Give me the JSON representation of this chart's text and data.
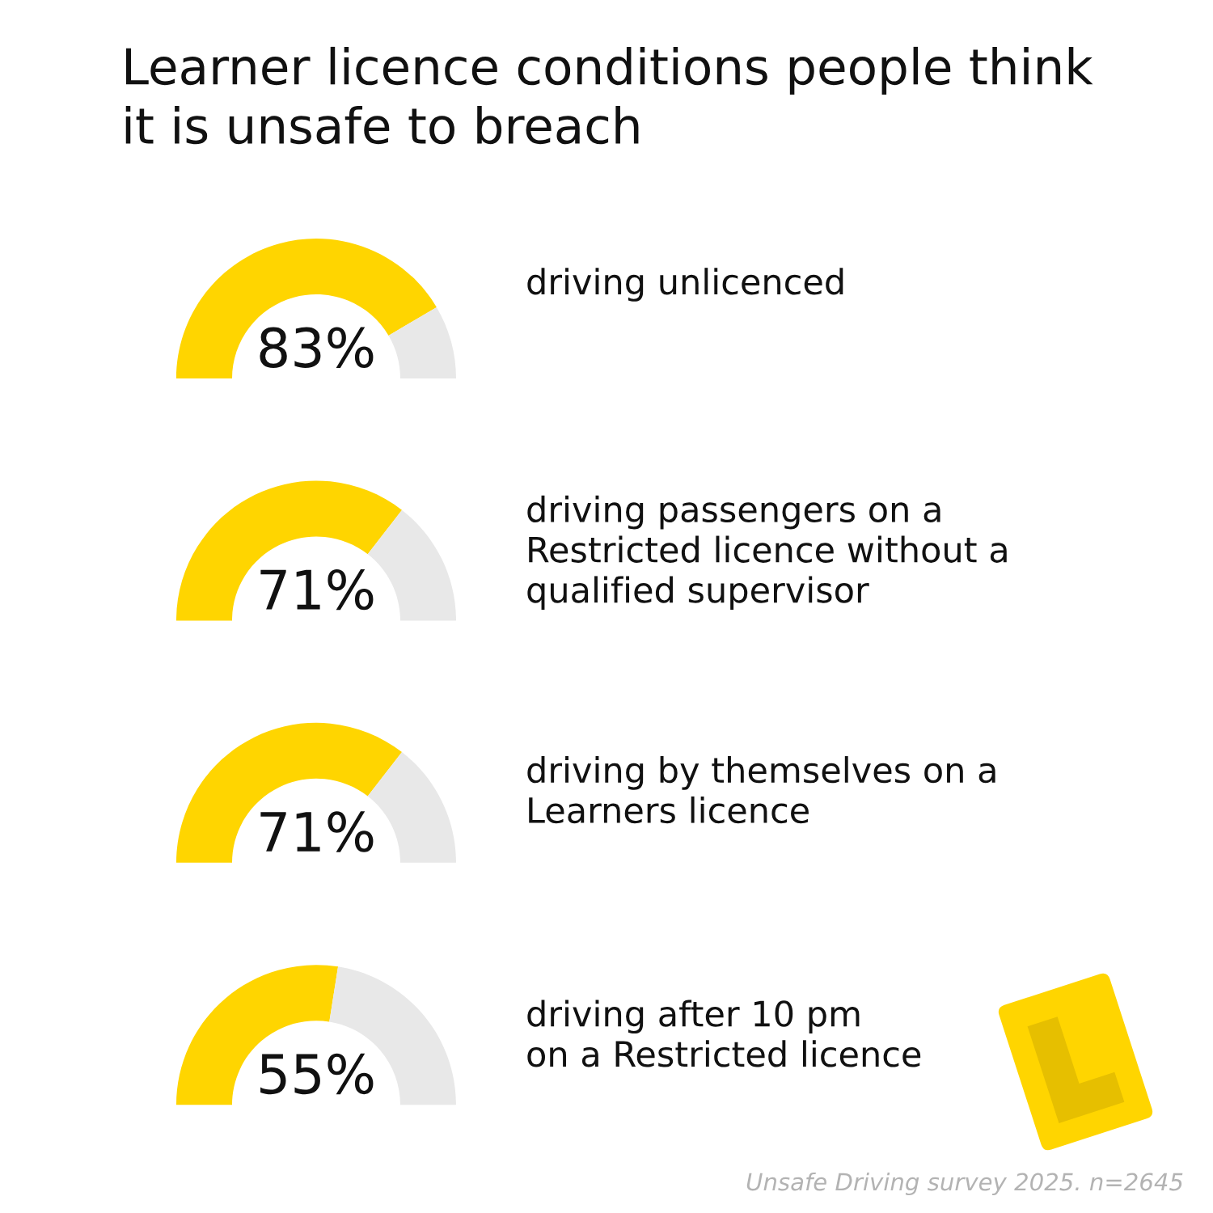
{
  "chart_data": [
    {
      "type": "donut",
      "title": "Learner licence conditions people think\nit is unsafe to breach",
      "subtitle": "driving unlicenced",
      "categories": [
        null,
        null
      ],
      "values": [
        83,
        17
      ],
      "colors": [
        "#ffd500",
        "#e8e8e8"
      ],
      "value_labels": [
        "83%",
        null
      ]
    },
    {
      "type": "donut",
      "subtitle": "driving passengers on a\nRestricted licence without a\nqualified supervisor",
      "categories": [
        null,
        null
      ],
      "values": [
        71,
        29
      ],
      "colors": [
        "#ffd500",
        "#e8e8e8"
      ],
      "value_labels": [
        "71%",
        null
      ]
    },
    {
      "type": "donut",
      "subtitle": "driving by themselves on a\nLearners licence",
      "categories": [
        null,
        null
      ],
      "values": [
        71,
        29
      ],
      "colors": [
        "#ffd500",
        "#e8e8e8"
      ],
      "value_labels": [
        "71%",
        null
      ]
    },
    {
      "type": "donut",
      "subtitle": "driving after 10 pm\non a Restricted licence",
      "categories": [
        null,
        null
      ],
      "values": [
        55,
        45
      ],
      "colors": [
        "#ffd500",
        "#e8e8e8"
      ],
      "value_labels": [
        "55%",
        null
      ],
      "annotations": [
        "Unsafe Driving survey 2025. n=2645"
      ]
    }
  ]
}
